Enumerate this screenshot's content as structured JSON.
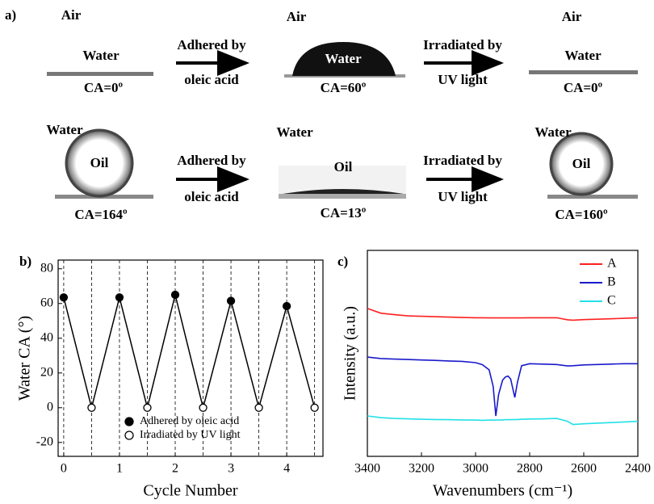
{
  "figure": {
    "panel_labels": [
      "a)",
      "b)",
      "c)"
    ],
    "panel_a": {
      "rows": [
        {
          "states": [
            {
              "medium": "Air",
              "drop": "Water",
              "ca": "CA=0º"
            },
            {
              "medium": "Air",
              "drop": "Water",
              "ca": "CA=60º"
            },
            {
              "medium": "Air",
              "drop": "Water",
              "ca": "CA=0º"
            }
          ],
          "arrows": [
            {
              "line1": "Adhered by",
              "line2": "oleic acid"
            },
            {
              "line1": "Irradiated by",
              "line2": "UV light"
            }
          ]
        },
        {
          "states": [
            {
              "medium": "Water",
              "drop": "Oil",
              "ca": "CA=164º"
            },
            {
              "medium": "Water",
              "drop": "Oil",
              "ca": "CA=13º"
            },
            {
              "medium": "Water",
              "drop": "Oil",
              "ca": "CA=160º"
            }
          ],
          "arrows": [
            {
              "line1": "Adhered by",
              "line2": "oleic acid"
            },
            {
              "line1": "Irradiated by",
              "line2": "UV light"
            }
          ]
        }
      ]
    }
  },
  "chart_data": [
    {
      "type": "scatter",
      "connect": true,
      "vlines": true,
      "x_label": "Cycle Number",
      "y_label": "Water CA (°)",
      "xlim": [
        -0.1,
        4.65
      ],
      "xticks": [
        0,
        1,
        2,
        3,
        4
      ],
      "ylim": [
        -28,
        85
      ],
      "yticks": [
        -20,
        0,
        20,
        40,
        60,
        80
      ],
      "series": [
        {
          "name": "Adhered by oleic acid",
          "color": "#000000",
          "marker": "filled",
          "x": [
            0,
            1,
            2,
            3,
            4
          ],
          "values": [
            63.5,
            63.5,
            65,
            61.5,
            58.5
          ]
        },
        {
          "name": "Irradiated by UV light",
          "color": "#000000",
          "marker": "open",
          "x": [
            0.5,
            1.5,
            2.5,
            3.5,
            4.5
          ],
          "values": [
            0,
            0,
            0,
            0,
            0
          ]
        }
      ]
    },
    {
      "type": "line",
      "x_label": "Wavenumbers (cm⁻¹)",
      "y_label": "Intensity (a.u.)",
      "xlim": [
        3400,
        2400
      ],
      "xticks": [
        3400,
        3200,
        3000,
        2800,
        2600,
        2400
      ],
      "ylim": [
        0,
        100
      ],
      "x": [
        3400,
        3350,
        3300,
        3250,
        3200,
        3150,
        3100,
        3050,
        3000,
        2975,
        2950,
        2935,
        2925,
        2915,
        2900,
        2890,
        2880,
        2870,
        2855,
        2845,
        2830,
        2800,
        2750,
        2700,
        2660,
        2640,
        2600,
        2550,
        2500,
        2450,
        2400
      ],
      "series": [
        {
          "name": "A",
          "color": "#ff2020",
          "values": [
            71.8,
            69.5,
            68.8,
            68.2,
            68,
            67.8,
            67.6,
            67.4,
            67.3,
            67.3,
            67.2,
            67.2,
            67.2,
            67.2,
            67.2,
            67.2,
            67.2,
            67.2,
            67.2,
            67.2,
            67.2,
            67.3,
            67.3,
            67.3,
            66.3,
            66.1,
            66.4,
            66.6,
            66.8,
            67,
            67.3
          ]
        },
        {
          "name": "B",
          "color": "#1a1acc",
          "values": [
            48.2,
            47.5,
            47.2,
            47,
            46.8,
            46.6,
            46.3,
            46.1,
            45.5,
            44.5,
            42,
            34,
            19.6,
            30,
            37,
            38.5,
            39,
            37.5,
            28.6,
            36,
            44,
            45,
            44.8,
            44.6,
            43.9,
            44,
            44.4,
            44.6,
            44.8,
            45,
            45
          ]
        },
        {
          "name": "C",
          "color": "#22e0e8",
          "values": [
            19.6,
            18.8,
            18.4,
            18.2,
            18,
            17.9,
            17.8,
            17.7,
            17.6,
            17.5,
            17.6,
            17.6,
            17.6,
            17.7,
            17.7,
            17.8,
            17.8,
            17.8,
            17.9,
            17.9,
            18,
            18.1,
            18.2,
            18.4,
            17,
            15.5,
            15.8,
            16.1,
            16.4,
            16.7,
            17
          ]
        }
      ]
    }
  ]
}
